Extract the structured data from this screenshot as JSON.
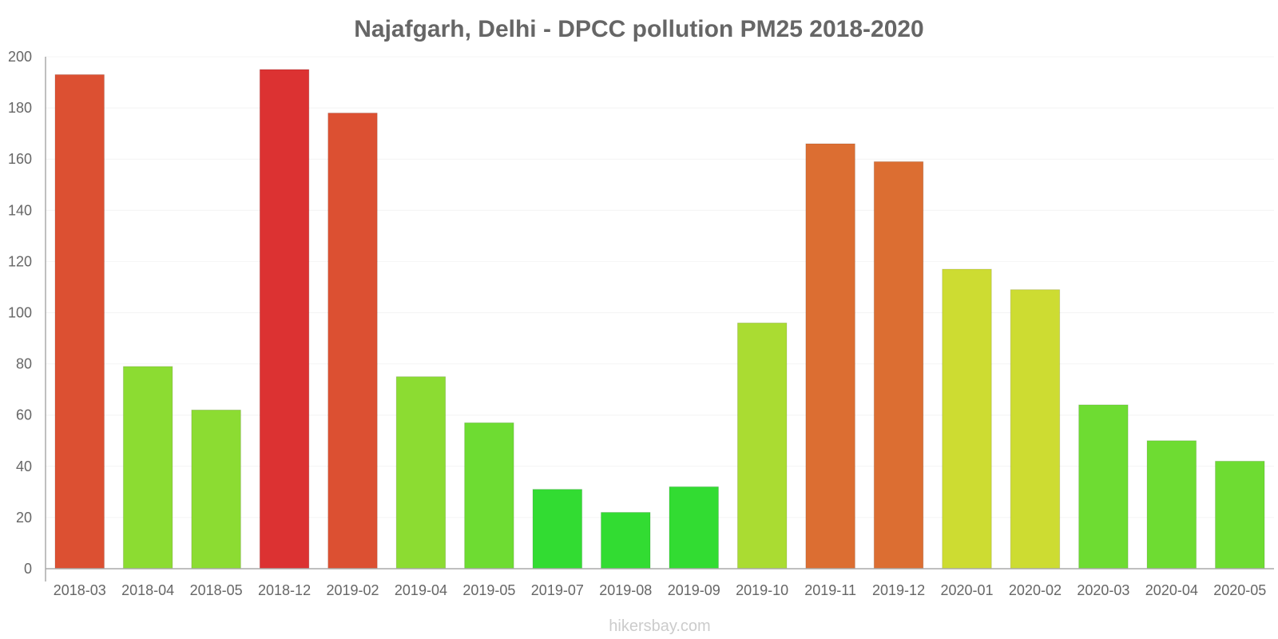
{
  "chart_data": {
    "type": "bar",
    "title": "Najafgarh, Delhi - DPCC pollution PM25 2018-2020",
    "xlabel": "",
    "ylabel": "",
    "ylim": [
      0,
      200
    ],
    "yticks": [
      "0",
      "20",
      "40",
      "60",
      "80",
      "100",
      "120",
      "140",
      "160",
      "180",
      "200"
    ],
    "categories": [
      "2018-03",
      "2018-04",
      "2018-05",
      "2018-12",
      "2019-02",
      "2019-04",
      "2019-05",
      "2019-07",
      "2019-08",
      "2019-09",
      "2019-10",
      "2019-11",
      "2019-12",
      "2020-01",
      "2020-02",
      "2020-03",
      "2020-04",
      "2020-05"
    ],
    "values": [
      193,
      79,
      62,
      195,
      178,
      75,
      57,
      31,
      22,
      32,
      96,
      166,
      159,
      117,
      109,
      64,
      50,
      42
    ],
    "bar_colors": [
      "#dc5032",
      "#8cdc32",
      "#8cdc32",
      "#dc3232",
      "#dc5032",
      "#8cdc32",
      "#6edc32",
      "#32dc32",
      "#32dc32",
      "#32dc32",
      "#aadc32",
      "#dc6e32",
      "#dc6e32",
      "#cddc32",
      "#cddc32",
      "#6edc32",
      "#6edc32",
      "#6edc32"
    ],
    "grid": true,
    "legend": "none"
  },
  "watermark": "hikersbay.com"
}
